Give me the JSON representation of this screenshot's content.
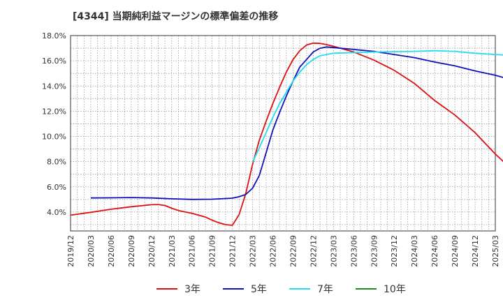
{
  "chart_data": {
    "type": "line",
    "title": "[4344]  当期純利益マージンの標準偏差の推移",
    "xlabel": "",
    "ylabel": "",
    "ylim": [
      2.5,
      18.0
    ],
    "yticks": [
      "4.0%",
      "6.0%",
      "8.0%",
      "10.0%",
      "12.0%",
      "14.0%",
      "16.0%",
      "18.0%"
    ],
    "ytick_values": [
      4,
      6,
      8,
      10,
      12,
      14,
      16,
      18
    ],
    "xticks": [
      "2019/12",
      "2020/03",
      "2020/06",
      "2020/09",
      "2020/12",
      "2021/03",
      "2021/06",
      "2021/09",
      "2021/12",
      "2022/03",
      "2022/06",
      "2022/09",
      "2022/12",
      "2023/03",
      "2023/06",
      "2023/09",
      "2023/12",
      "2024/03",
      "2024/06",
      "2024/09",
      "2024/12",
      "2025/03"
    ],
    "grid": true,
    "legend_position": "bottom",
    "series": [
      {
        "name": "3年",
        "color": "#dd1111",
        "points": [
          [
            "2019/12",
            3.75
          ],
          [
            "2020/03",
            3.98
          ],
          [
            "2020/06",
            4.22
          ],
          [
            "2020/09",
            4.42
          ],
          [
            "2020/12",
            4.58
          ],
          [
            "2021/01",
            4.6
          ],
          [
            "2021/02",
            4.52
          ],
          [
            "2021/03",
            4.3
          ],
          [
            "2021/04",
            4.12
          ],
          [
            "2021/06",
            3.9
          ],
          [
            "2021/08",
            3.6
          ],
          [
            "2021/09",
            3.35
          ],
          [
            "2021/10",
            3.15
          ],
          [
            "2021/11",
            3.0
          ],
          [
            "2021/12",
            2.95
          ],
          [
            "2022/01",
            3.8
          ],
          [
            "2022/02",
            5.5
          ],
          [
            "2022/03",
            7.8
          ],
          [
            "2022/04",
            9.7
          ],
          [
            "2022/05",
            11.2
          ],
          [
            "2022/06",
            12.6
          ],
          [
            "2022/07",
            13.9
          ],
          [
            "2022/08",
            15.1
          ],
          [
            "2022/09",
            16.1
          ],
          [
            "2022/10",
            16.8
          ],
          [
            "2022/11",
            17.25
          ],
          [
            "2022/12",
            17.4
          ],
          [
            "2023/01",
            17.38
          ],
          [
            "2023/02",
            17.28
          ],
          [
            "2023/03",
            17.15
          ],
          [
            "2023/06",
            16.7
          ],
          [
            "2023/09",
            16.05
          ],
          [
            "2023/12",
            15.25
          ],
          [
            "2024/03",
            14.2
          ],
          [
            "2024/06",
            12.85
          ],
          [
            "2024/09",
            11.7
          ],
          [
            "2024/12",
            10.3
          ],
          [
            "2025/03",
            8.6
          ],
          [
            "2025/06",
            7.1
          ]
        ]
      },
      {
        "name": "5年",
        "color": "#1111bb",
        "points": [
          [
            "2020/03",
            5.12
          ],
          [
            "2020/06",
            5.13
          ],
          [
            "2020/09",
            5.15
          ],
          [
            "2020/12",
            5.12
          ],
          [
            "2021/03",
            5.05
          ],
          [
            "2021/06",
            5.0
          ],
          [
            "2021/09",
            5.02
          ],
          [
            "2021/12",
            5.1
          ],
          [
            "2022/01",
            5.22
          ],
          [
            "2022/02",
            5.4
          ],
          [
            "2022/03",
            5.9
          ],
          [
            "2022/04",
            6.9
          ],
          [
            "2022/05",
            8.7
          ],
          [
            "2022/06",
            10.5
          ],
          [
            "2022/07",
            11.9
          ],
          [
            "2022/08",
            13.2
          ],
          [
            "2022/09",
            14.4
          ],
          [
            "2022/10",
            15.5
          ],
          [
            "2022/11",
            16.1
          ],
          [
            "2022/12",
            16.7
          ],
          [
            "2023/01",
            17.0
          ],
          [
            "2023/02",
            17.1
          ],
          [
            "2023/03",
            17.05
          ],
          [
            "2023/06",
            16.9
          ],
          [
            "2023/09",
            16.75
          ],
          [
            "2023/12",
            16.5
          ],
          [
            "2024/03",
            16.25
          ],
          [
            "2024/06",
            15.9
          ],
          [
            "2024/09",
            15.6
          ],
          [
            "2024/12",
            15.2
          ],
          [
            "2025/03",
            14.85
          ],
          [
            "2025/06",
            14.4
          ]
        ]
      },
      {
        "name": "7年",
        "color": "#22ddee",
        "points": [
          [
            "2022/03",
            7.95
          ],
          [
            "2022/04",
            9.1
          ],
          [
            "2022/05",
            10.3
          ],
          [
            "2022/06",
            11.5
          ],
          [
            "2022/07",
            12.6
          ],
          [
            "2022/08",
            13.5
          ],
          [
            "2022/09",
            14.4
          ],
          [
            "2022/10",
            15.1
          ],
          [
            "2022/11",
            15.7
          ],
          [
            "2022/12",
            16.1
          ],
          [
            "2023/01",
            16.4
          ],
          [
            "2023/03",
            16.6
          ],
          [
            "2023/06",
            16.65
          ],
          [
            "2023/09",
            16.7
          ],
          [
            "2023/12",
            16.72
          ],
          [
            "2024/03",
            16.75
          ],
          [
            "2024/06",
            16.8
          ],
          [
            "2024/09",
            16.75
          ],
          [
            "2024/12",
            16.6
          ],
          [
            "2025/03",
            16.5
          ],
          [
            "2025/06",
            16.4
          ]
        ]
      },
      {
        "name": "10年",
        "color": "#228822",
        "points": []
      }
    ]
  }
}
